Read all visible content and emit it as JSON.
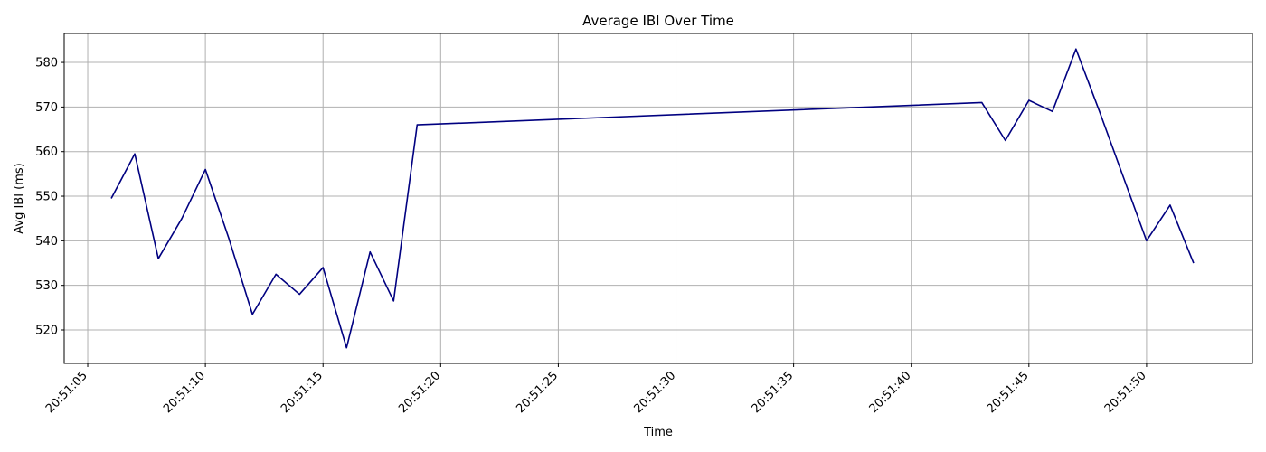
{
  "chart_data": {
    "type": "line",
    "title": "Average IBI Over Time",
    "xlabel": "Time",
    "ylabel": "Avg IBI (ms)",
    "grid": true,
    "line_color": "#000080",
    "grid_color": "#b0b0b0",
    "xlim": [
      "20:51:04",
      "20:51:54.5"
    ],
    "ylim": [
      512.5,
      586.5
    ],
    "x_ticks": [
      "20:51:05",
      "20:51:10",
      "20:51:15",
      "20:51:20",
      "20:51:25",
      "20:51:30",
      "20:51:35",
      "20:51:40",
      "20:51:45",
      "20:51:50"
    ],
    "y_ticks": [
      520,
      530,
      540,
      550,
      560,
      570,
      580
    ],
    "series": [
      {
        "x": [
          "20:51:06",
          "20:51:07",
          "20:51:08",
          "20:51:09",
          "20:51:10",
          "20:51:11",
          "20:51:12",
          "20:51:13",
          "20:51:14",
          "20:51:15",
          "20:51:16",
          "20:51:17",
          "20:51:18",
          "20:51:19",
          "20:51:43",
          "20:51:44",
          "20:51:45",
          "20:51:46",
          "20:51:47",
          "20:51:48",
          "20:51:49",
          "20:51:50",
          "20:51:51",
          "20:51:52"
        ],
        "values": [
          549.5,
          559.5,
          536,
          545,
          556,
          540.5,
          523.5,
          532.5,
          528,
          534,
          516,
          537.5,
          526.5,
          566,
          571,
          562.5,
          571.5,
          569,
          583,
          569,
          554.5,
          540,
          548,
          535
        ]
      }
    ]
  }
}
